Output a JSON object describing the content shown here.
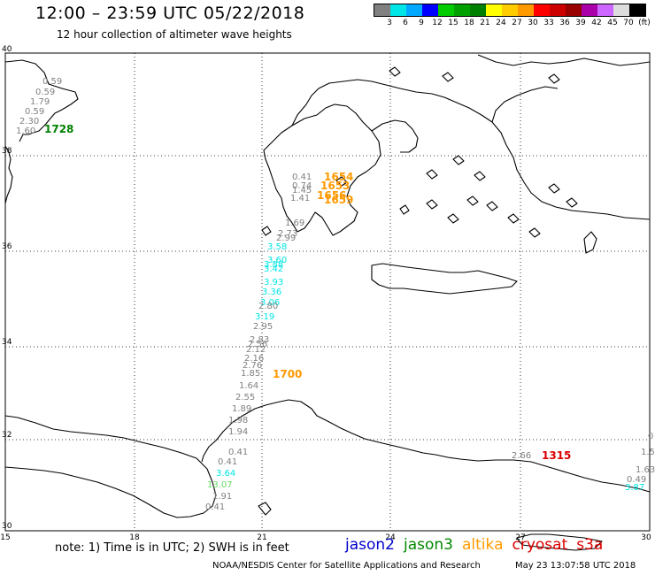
{
  "header": {
    "title": "12:00 – 23:59 UTC 05/22/2018",
    "subtitle": "12 hour collection of altimeter wave heights"
  },
  "legend": {
    "colors": [
      "#808080",
      "#00e5e5",
      "#00a8ff",
      "#0000ff",
      "#00cc00",
      "#00a000",
      "#008000",
      "#ffff00",
      "#ffcc00",
      "#ff9900",
      "#ff0000",
      "#cc0000",
      "#990000",
      "#aa00aa",
      "#cc66ff",
      "#dddddd",
      "#000000"
    ],
    "labels": [
      "3",
      "6",
      "9",
      "12",
      "15",
      "18",
      "21",
      "24",
      "27",
      "30",
      "33",
      "36",
      "39",
      "42",
      "45",
      "70",
      "(ft)"
    ]
  },
  "map": {
    "lat_ticks": [
      "40",
      "38",
      "36",
      "34",
      "32",
      "30"
    ],
    "lon_ticks": [
      "15",
      "18",
      "21",
      "24",
      "27",
      "30"
    ],
    "lat_range": [
      30,
      40
    ],
    "lon_range": [
      15,
      30
    ]
  },
  "observations": [
    {
      "id": "t1",
      "text": "0.59",
      "color": "#808080"
    },
    {
      "id": "t2",
      "text": "0.59",
      "color": "#808080"
    },
    {
      "id": "t3",
      "text": "1.79",
      "color": "#808080"
    },
    {
      "id": "t4",
      "text": "0.59",
      "color": "#808080"
    },
    {
      "id": "t5",
      "text": "2.30",
      "color": "#808080"
    },
    {
      "id": "t6",
      "text": "1.60",
      "color": "#808080"
    },
    {
      "id": "t7",
      "text": "0.41",
      "color": "#808080"
    },
    {
      "id": "t8",
      "text": "0.74",
      "color": "#808080"
    },
    {
      "id": "t9",
      "text": "1.45",
      "color": "#808080"
    },
    {
      "id": "t10",
      "text": "1.41",
      "color": "#808080"
    },
    {
      "id": "t11",
      "text": "1.69",
      "color": "#808080"
    },
    {
      "id": "t12",
      "text": "2.73",
      "color": "#808080"
    },
    {
      "id": "t13",
      "text": "2.99",
      "color": "#808080"
    },
    {
      "id": "t14",
      "text": "3.58",
      "color": "#00e5e5"
    },
    {
      "id": "t15",
      "text": "3.60",
      "color": "#00e5e5"
    },
    {
      "id": "t16",
      "text": "3.88",
      "color": "#00e5e5"
    },
    {
      "id": "t17",
      "text": "3.42",
      "color": "#00e5e5"
    },
    {
      "id": "t18",
      "text": "3.93",
      "color": "#00e5e5"
    },
    {
      "id": "t19",
      "text": "3.36",
      "color": "#00e5e5"
    },
    {
      "id": "t20",
      "text": "3.06",
      "color": "#00e5e5"
    },
    {
      "id": "t21",
      "text": "2.80",
      "color": "#808080"
    },
    {
      "id": "t22",
      "text": "3.19",
      "color": "#00e5e5"
    },
    {
      "id": "t23",
      "text": "2.95",
      "color": "#808080"
    },
    {
      "id": "t24",
      "text": "2.83",
      "color": "#808080"
    },
    {
      "id": "t25",
      "text": "2.56",
      "color": "#808080"
    },
    {
      "id": "t26",
      "text": "2.12",
      "color": "#808080"
    },
    {
      "id": "t27",
      "text": "2.16",
      "color": "#808080"
    },
    {
      "id": "t28",
      "text": "2.76",
      "color": "#808080"
    },
    {
      "id": "t29",
      "text": "1.85",
      "color": "#808080"
    },
    {
      "id": "t30",
      "text": "1.64",
      "color": "#808080"
    },
    {
      "id": "t31",
      "text": "2.55",
      "color": "#808080"
    },
    {
      "id": "t32",
      "text": "1.89",
      "color": "#808080"
    },
    {
      "id": "t33",
      "text": "1.98",
      "color": "#808080"
    },
    {
      "id": "t34",
      "text": "1.94",
      "color": "#808080"
    },
    {
      "id": "t35",
      "text": "0.41",
      "color": "#808080"
    },
    {
      "id": "t36",
      "text": "0.41",
      "color": "#808080"
    },
    {
      "id": "t37",
      "text": "3.64",
      "color": "#00e5e5"
    },
    {
      "id": "t38",
      "text": "13.07",
      "color": "#66dd66"
    },
    {
      "id": "t39",
      "text": "1.91",
      "color": "#808080"
    },
    {
      "id": "t40",
      "text": "0.41",
      "color": "#808080"
    },
    {
      "id": "t41",
      "text": "2.66",
      "color": "#808080"
    },
    {
      "id": "t42",
      "text": "1.63",
      "color": "#808080"
    },
    {
      "id": "t43",
      "text": "0.49",
      "color": "#808080"
    },
    {
      "id": "t44",
      "text": "3.87",
      "color": "#00e5e5"
    },
    {
      "id": "t45",
      "text": "1.5",
      "color": "#808080"
    },
    {
      "id": "t46",
      "text": "0",
      "color": "#808080"
    }
  ],
  "pass_times": [
    {
      "id": "p1",
      "text": "1728",
      "color": "#008000"
    },
    {
      "id": "p2",
      "text": "1654",
      "color": "#ff9900"
    },
    {
      "id": "p3",
      "text": "1653",
      "color": "#ff9900"
    },
    {
      "id": "p4",
      "text": "1656",
      "color": "#ff9900"
    },
    {
      "id": "p5",
      "text": "1659",
      "color": "#ff9900"
    },
    {
      "id": "p6",
      "text": "1700",
      "color": "#ff9900"
    },
    {
      "id": "p7",
      "text": "1315",
      "color": "#dd0000"
    }
  ],
  "footer": {
    "note": "note:  1) Time is in UTC; 2) SWH is in feet",
    "satellites": [
      {
        "name": "jason2",
        "color": "#0000cc"
      },
      {
        "name": "jason3",
        "color": "#008800"
      },
      {
        "name": "altika",
        "color": "#ff9900"
      },
      {
        "name": "cryosat",
        "color": "#dd0000"
      },
      {
        "name": "s3a",
        "color": "#dd0000"
      }
    ],
    "credit": "NOAA/NESDIS Center for Satellite Applications and Research",
    "timestamp": "May 23 13:07:58 UTC 2018"
  }
}
